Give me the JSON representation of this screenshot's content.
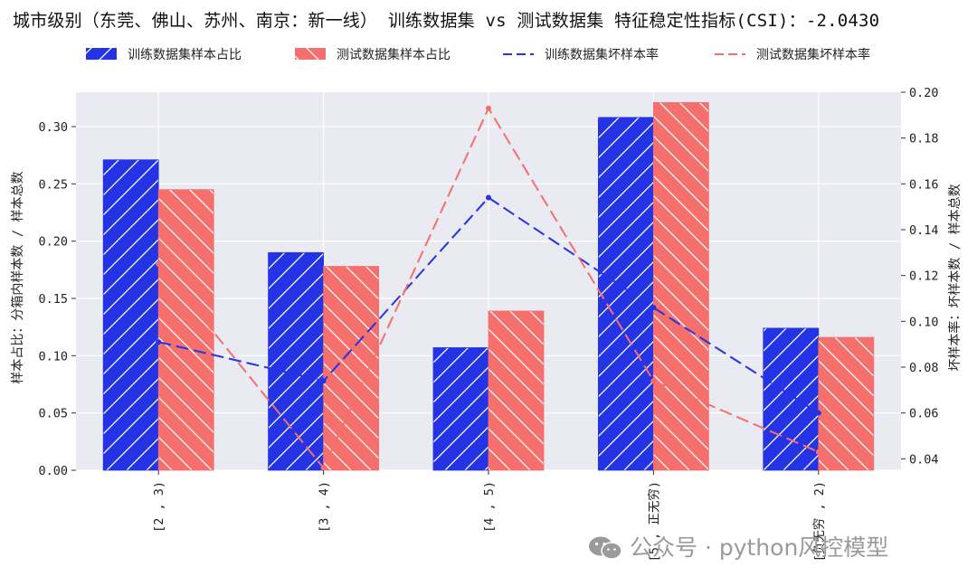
{
  "title": "城市级别（东莞、佛山、苏州、南京：新一线） 训练数据集 vs 测试数据集 特征稳定性指标(CSI)：-2.0430",
  "watermark": "公众号 · python风控模型",
  "chart_data": {
    "type": "bar",
    "categories": [
      "[2 , 3)",
      "[3 , 4)",
      "[4 , 5)",
      "[5 , 正无穷)",
      "[负无穷 , 2)"
    ],
    "series": [
      {
        "name": "训练数据集样本占比",
        "kind": "bar",
        "axis": "left",
        "color": "#2433e3",
        "hatch": "forward",
        "values": [
          0.271,
          0.19,
          0.107,
          0.308,
          0.124
        ]
      },
      {
        "name": "测试数据集样本占比",
        "kind": "bar",
        "axis": "left",
        "color": "#f56f6c",
        "hatch": "backward",
        "values": [
          0.245,
          0.178,
          0.139,
          0.321,
          0.116
        ]
      },
      {
        "name": "训练数据集坏样本率",
        "kind": "line",
        "axis": "right",
        "color": "#2433e3",
        "style": "dashed",
        "values": [
          0.091,
          0.074,
          0.154,
          0.106,
          0.06
        ]
      },
      {
        "name": "测试数据集坏样本率",
        "kind": "line",
        "axis": "right",
        "color": "#f56f6c",
        "style": "dashed",
        "values": [
          0.125,
          0.036,
          0.193,
          0.074,
          0.043
        ]
      }
    ],
    "ylabel": "样本占比：分箱内样本数 / 样本总数",
    "y2label": "坏样本率：坏样本数 / 样本总数",
    "ylim": [
      0,
      0.33
    ],
    "y2lim": [
      0.035,
      0.2
    ],
    "yticks": [
      "0.00",
      "0.05",
      "0.10",
      "0.15",
      "0.20",
      "0.25",
      "0.30"
    ],
    "y2ticks": [
      "0.04",
      "0.06",
      "0.08",
      "0.10",
      "0.12",
      "0.14",
      "0.16",
      "0.18",
      "0.20"
    ],
    "grid": true,
    "legend_position": "top"
  }
}
